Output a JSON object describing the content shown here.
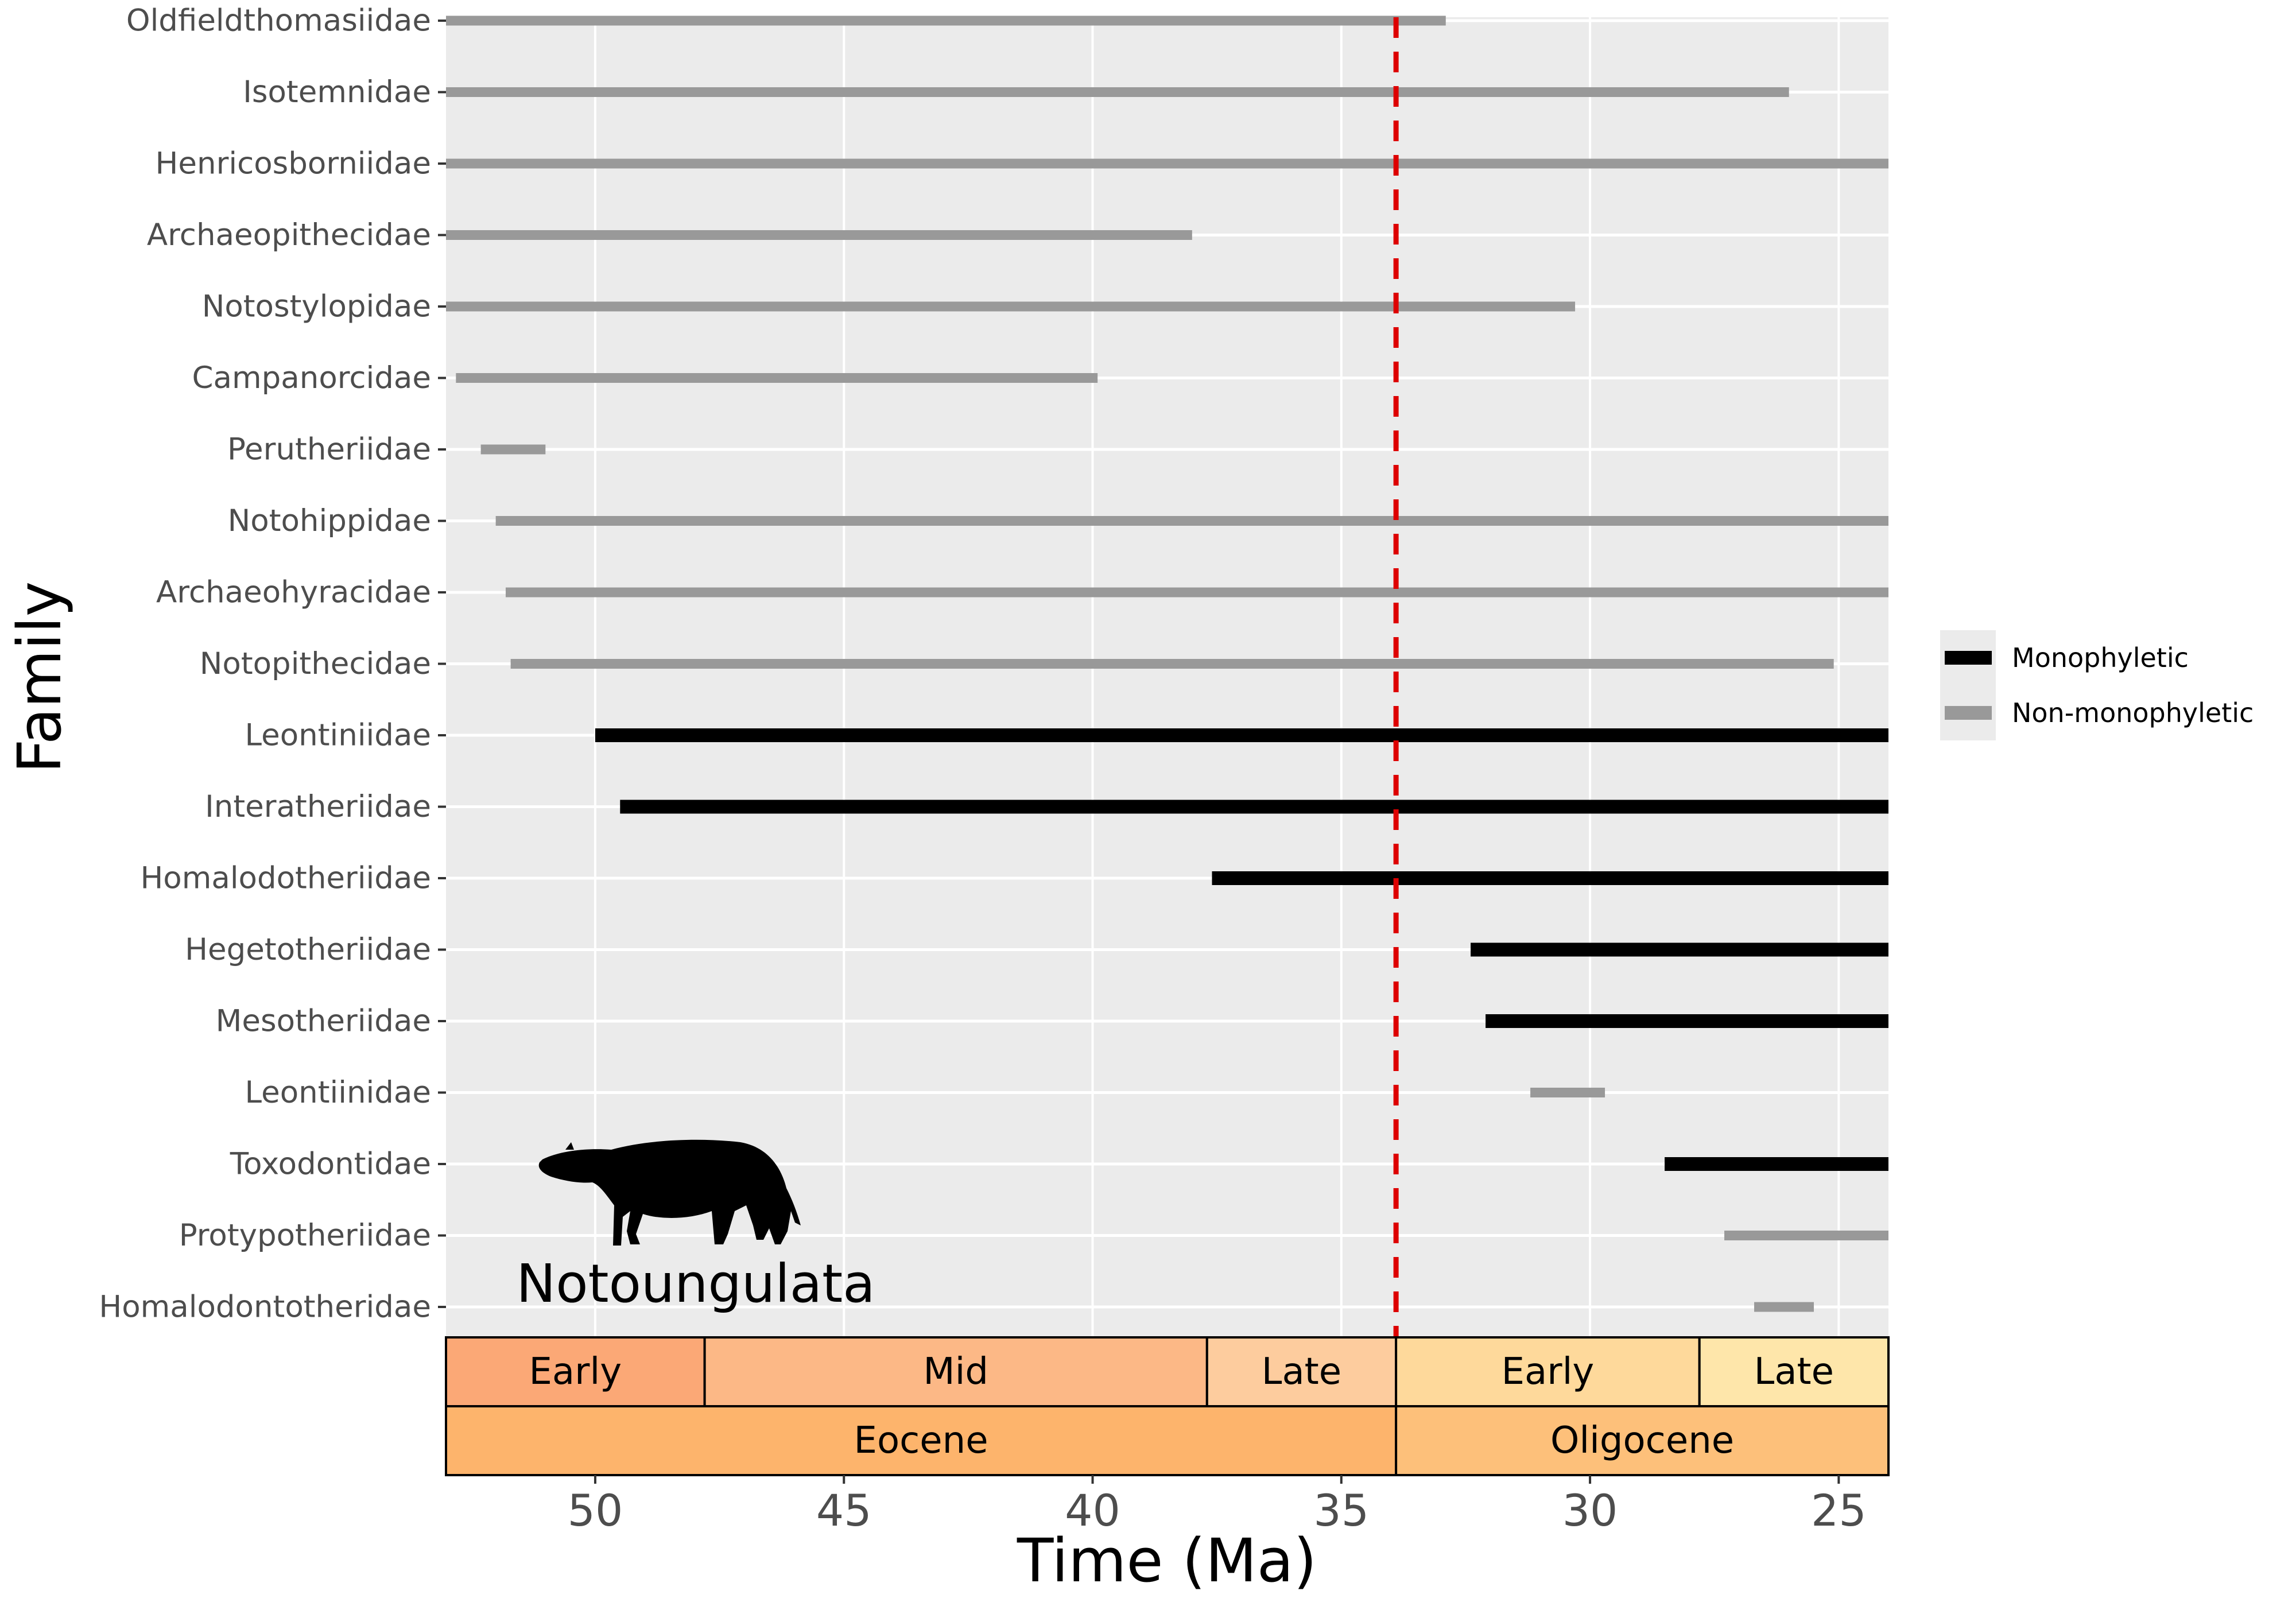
{
  "chart_data": {
    "type": "range-bar",
    "xlabel": "Time (Ma)",
    "ylabel": "Family",
    "xlim": [
      53.0,
      24.0
    ],
    "x_reversed": true,
    "x_ticks": [
      50,
      45,
      40,
      35,
      30,
      25
    ],
    "grid": true,
    "reference_line": {
      "x": 33.9,
      "style": "dashed",
      "color": "#dd0000"
    },
    "annotation": "Notoungulata",
    "legend": {
      "position": "right",
      "entries": [
        {
          "label": "Monophyletic",
          "color": "#000000"
        },
        {
          "label": "Non-monophyletic",
          "color": "#999999"
        }
      ]
    },
    "families": [
      {
        "name": "Oldfieldthomasiidae",
        "start": 53.0,
        "end": 32.9,
        "status": "Non-monophyletic"
      },
      {
        "name": "Isotemnidae",
        "start": 53.0,
        "end": 26.0,
        "status": "Non-monophyletic"
      },
      {
        "name": "Henricosborniidae",
        "start": 53.0,
        "end": 24.0,
        "status": "Non-monophyletic"
      },
      {
        "name": "Archaeopithecidae",
        "start": 53.0,
        "end": 38.0,
        "status": "Non-monophyletic"
      },
      {
        "name": "Notostylopidae",
        "start": 53.0,
        "end": 30.3,
        "status": "Non-monophyletic"
      },
      {
        "name": "Campanorcidae",
        "start": 52.8,
        "end": 39.9,
        "status": "Non-monophyletic"
      },
      {
        "name": "Perutheriidae",
        "start": 52.3,
        "end": 51.0,
        "status": "Non-monophyletic"
      },
      {
        "name": "Notohippidae",
        "start": 52.0,
        "end": 24.0,
        "status": "Non-monophyletic"
      },
      {
        "name": "Archaeohyracidae",
        "start": 51.8,
        "end": 24.0,
        "status": "Non-monophyletic"
      },
      {
        "name": "Notopithecidae",
        "start": 51.7,
        "end": 25.1,
        "status": "Non-monophyletic"
      },
      {
        "name": "Leontiniidae",
        "start": 50.0,
        "end": 24.0,
        "status": "Monophyletic"
      },
      {
        "name": "Interatheriidae",
        "start": 49.5,
        "end": 24.0,
        "status": "Monophyletic"
      },
      {
        "name": "Homalodotheriidae",
        "start": 37.6,
        "end": 24.0,
        "status": "Monophyletic"
      },
      {
        "name": "Hegetotheriidae",
        "start": 32.4,
        "end": 24.0,
        "status": "Monophyletic"
      },
      {
        "name": "Mesotheriidae",
        "start": 32.1,
        "end": 24.0,
        "status": "Monophyletic"
      },
      {
        "name": "Leontiinidae",
        "start": 31.2,
        "end": 29.7,
        "status": "Non-monophyletic"
      },
      {
        "name": "Toxodontidae",
        "start": 28.5,
        "end": 24.0,
        "status": "Monophyletic"
      },
      {
        "name": "Protypotheriidae",
        "start": 27.3,
        "end": 24.0,
        "status": "Non-monophyletic"
      },
      {
        "name": "Homalodontotheridae",
        "start": 26.7,
        "end": 25.5,
        "status": "Non-monophyletic"
      }
    ],
    "timescale": {
      "stages": [
        {
          "label": "Early",
          "start": 53.0,
          "end": 47.8,
          "color": "#fba876"
        },
        {
          "label": "Mid",
          "start": 47.8,
          "end": 37.7,
          "color": "#fcb886"
        },
        {
          "label": "Late",
          "start": 37.7,
          "end": 33.9,
          "color": "#fdcc9e"
        },
        {
          "label": "Early",
          "start": 33.9,
          "end": 27.8,
          "color": "#fed99b"
        },
        {
          "label": "Late",
          "start": 27.8,
          "end": 24.0,
          "color": "#fee6aa"
        }
      ],
      "epochs": [
        {
          "label": "Eocene",
          "start": 53.0,
          "end": 33.9,
          "color": "#fdb46c"
        },
        {
          "label": "Oligocene",
          "start": 33.9,
          "end": 24.0,
          "color": "#fdc07a"
        }
      ]
    }
  }
}
